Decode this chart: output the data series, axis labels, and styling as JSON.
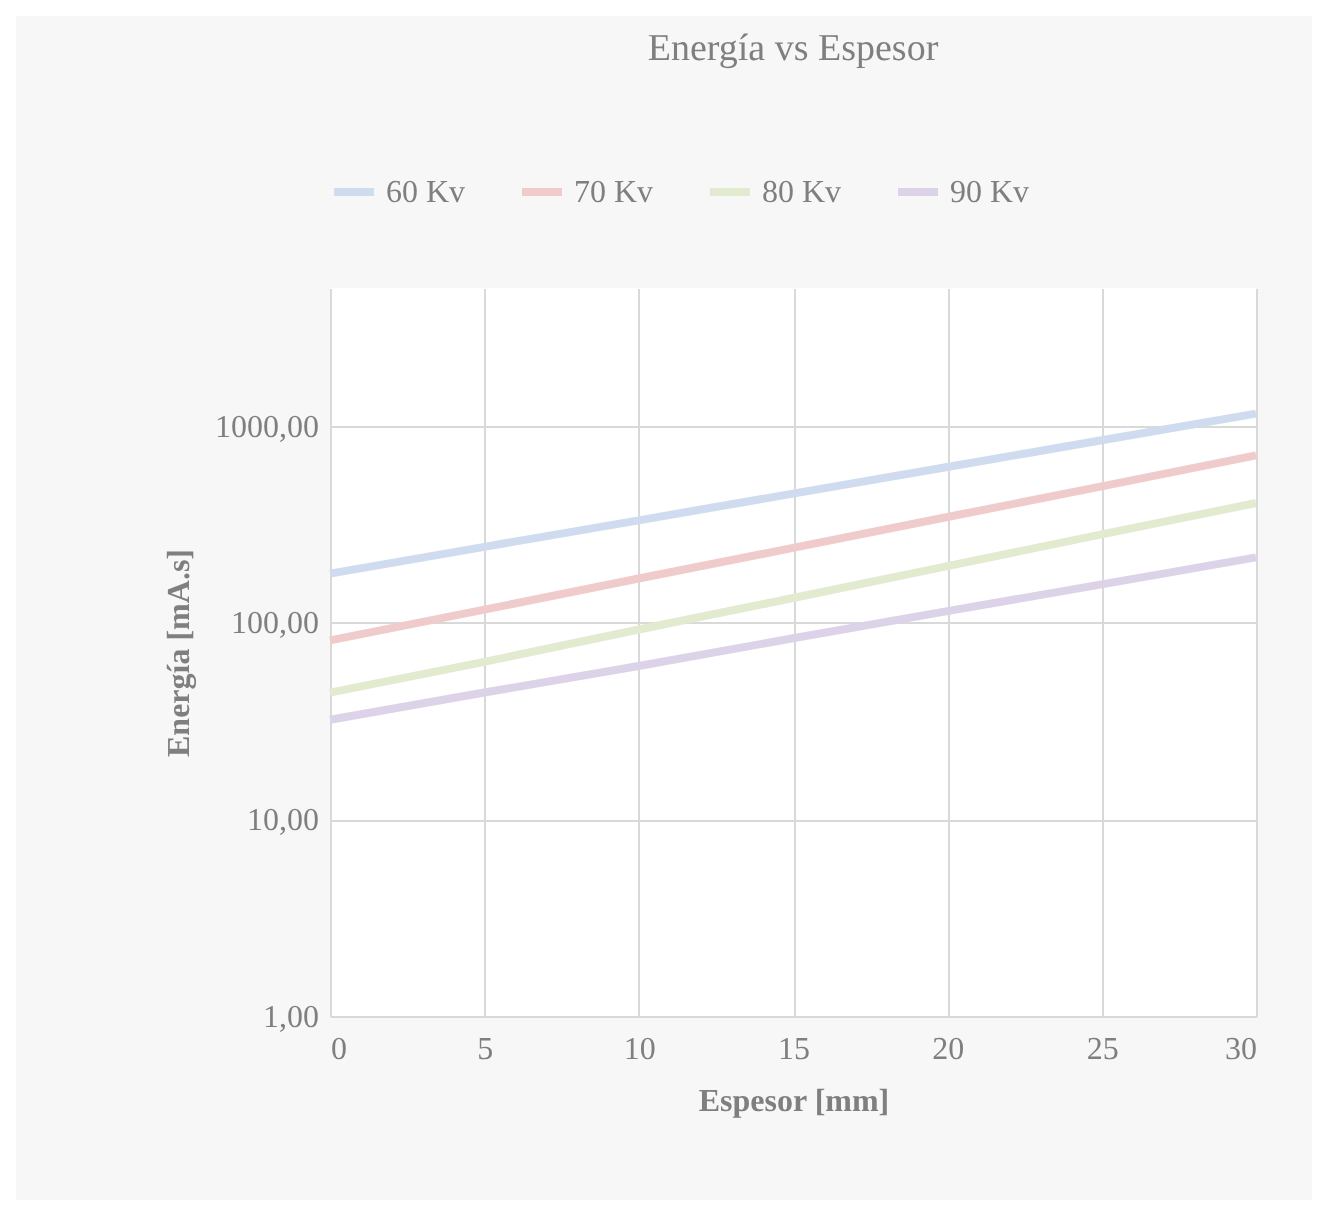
{
  "chart_data": {
    "type": "line",
    "title": "Energía vs Espesor",
    "xlabel": "Espesor [mm]",
    "ylabel": "Energía [mA.s]",
    "x": [
      0,
      5,
      10,
      15,
      20,
      25,
      30
    ],
    "series": [
      {
        "name": "60 Kv",
        "color": "#cfdbee",
        "values": [
          177,
          242,
          330,
          451,
          616,
          842,
          1150
        ]
      },
      {
        "name": "70 Kv",
        "color": "#f0cbcb",
        "values": [
          81,
          116,
          167,
          239,
          343,
          491,
          705
        ]
      },
      {
        "name": "80 Kv",
        "color": "#e2ebcf",
        "values": [
          44,
          63,
          92,
          133,
          193,
          280,
          404
        ]
      },
      {
        "name": "90 Kv",
        "color": "#dcd3e8",
        "values": [
          32,
          44,
          60,
          83,
          114,
          156,
          214
        ]
      }
    ],
    "log": "y",
    "xlim": [
      0,
      30
    ],
    "xticks": [
      0,
      5,
      10,
      15,
      20,
      25,
      30
    ],
    "ylim": [
      1,
      5000
    ],
    "yticks": [
      {
        "value": 1,
        "label": "1,00"
      },
      {
        "value": 10,
        "label": "10,00"
      },
      {
        "value": 100,
        "label": "100,00"
      },
      {
        "value": 1000,
        "label": "1000,00"
      }
    ],
    "grid": true,
    "legend": "top",
    "marker": "none",
    "line_style": "solid"
  }
}
